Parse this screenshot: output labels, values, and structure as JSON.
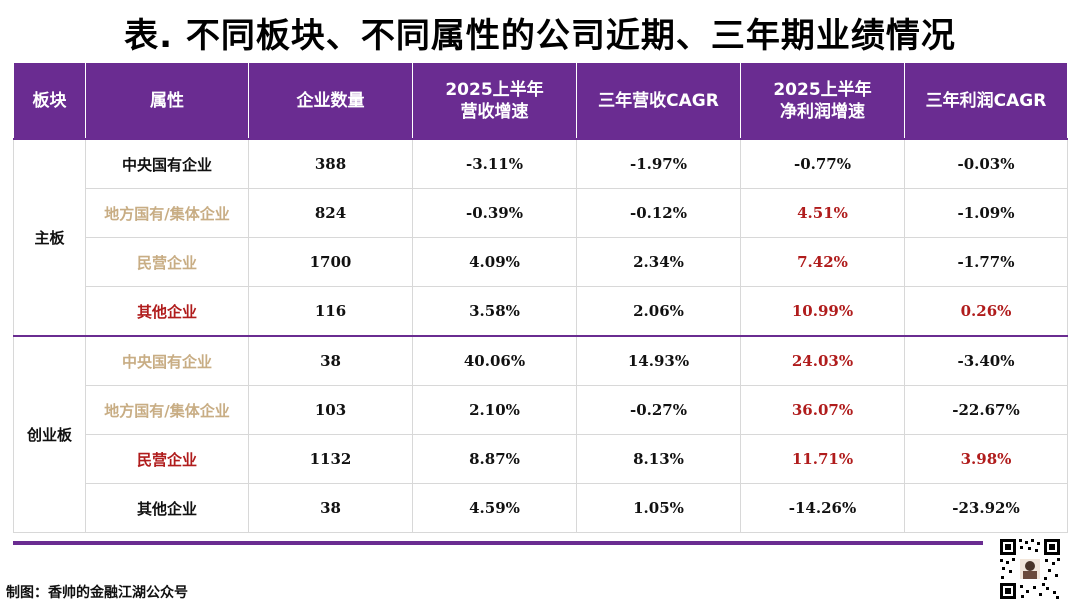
{
  "title": "表. 不同板块、不同属性的公司近期、三年期业绩情况",
  "headers": {
    "board": "板块",
    "attr": "属性",
    "count": "企业数量",
    "rev_h1_line1": "2025上半年",
    "rev_h1_line2": "营收增速",
    "rev_cagr": "三年营收CAGR",
    "np_h1_line1": "2025上半年",
    "np_h1_line2": "净利润增速",
    "profit_cagr": "三年利润CAGR"
  },
  "groups": [
    {
      "board": "主板",
      "rows": [
        {
          "attr": "中央国有企业",
          "count": "388",
          "rev_h1": "-3.11%",
          "rev_cagr": "-1.97%",
          "np_h1": "-0.77%",
          "profit_cagr": "-0.03%"
        },
        {
          "attr": "地方国有/集体企业",
          "count": "824",
          "rev_h1": "-0.39%",
          "rev_cagr": "-0.12%",
          "np_h1": "4.51%",
          "profit_cagr": "-1.09%"
        },
        {
          "attr": "民营企业",
          "count": "1700",
          "rev_h1": "4.09%",
          "rev_cagr": "2.34%",
          "np_h1": "7.42%",
          "profit_cagr": "-1.77%"
        },
        {
          "attr": "其他企业",
          "count": "116",
          "rev_h1": "3.58%",
          "rev_cagr": "2.06%",
          "np_h1": "10.99%",
          "profit_cagr": "0.26%"
        }
      ]
    },
    {
      "board": "创业板",
      "rows": [
        {
          "attr": "中央国有企业",
          "count": "38",
          "rev_h1": "40.06%",
          "rev_cagr": "14.93%",
          "np_h1": "24.03%",
          "profit_cagr": "-3.40%"
        },
        {
          "attr": "地方国有/集体企业",
          "count": "103",
          "rev_h1": "2.10%",
          "rev_cagr": "-0.27%",
          "np_h1": "36.07%",
          "profit_cagr": "-22.67%"
        },
        {
          "attr": "民营企业",
          "count": "1132",
          "rev_h1": "8.87%",
          "rev_cagr": "8.13%",
          "np_h1": "11.71%",
          "profit_cagr": "3.98%"
        },
        {
          "attr": "其他企业",
          "count": "38",
          "rev_h1": "4.59%",
          "rev_cagr": "1.05%",
          "np_h1": "-14.26%",
          "profit_cagr": "-23.92%"
        }
      ]
    }
  ],
  "credit": "制图：香帅的金融江湖公众号",
  "colors": {
    "header_bg": "#6a2c91",
    "highlight_red": "#b01c1c",
    "muted_tan": "#c8ad84"
  }
}
